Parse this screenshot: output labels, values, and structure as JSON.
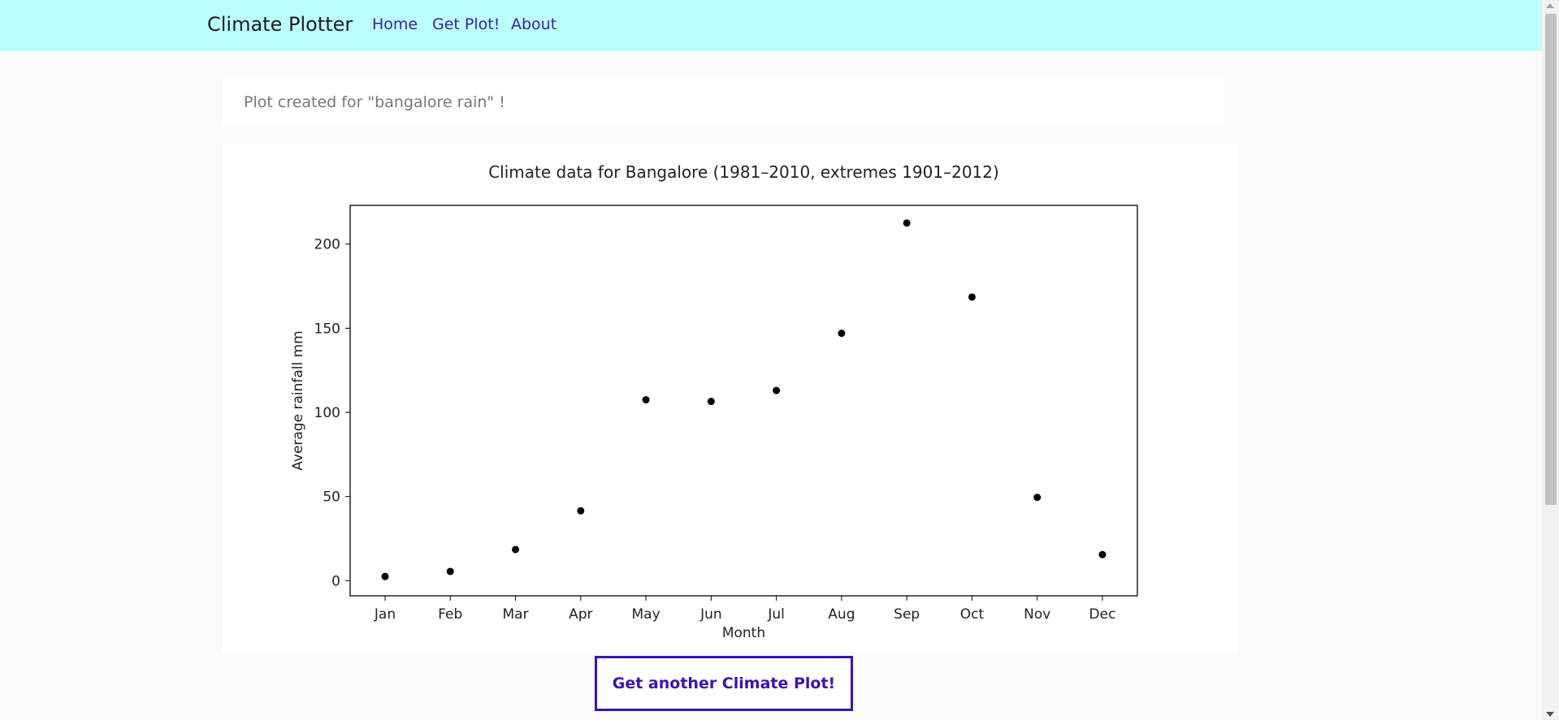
{
  "navbar": {
    "brand": "Climate Plotter",
    "links": [
      "Home",
      "Get Plot!",
      "About"
    ]
  },
  "message": "Plot created for \"bangalore rain\" !",
  "chart_data": {
    "type": "scatter",
    "title": "Climate data for Bangalore (1981–2010, extremes 1901–2012)",
    "xlabel": "Month",
    "ylabel": "Average rainfall mm",
    "categories": [
      "Jan",
      "Feb",
      "Mar",
      "Apr",
      "May",
      "Jun",
      "Jul",
      "Aug",
      "Sep",
      "Oct",
      "Nov",
      "Dec"
    ],
    "values": [
      2.5,
      5.5,
      18.5,
      41.5,
      107.5,
      106.5,
      113,
      147,
      212.5,
      168.5,
      49.5,
      15.5
    ],
    "yticks": [
      0,
      50,
      100,
      150,
      200
    ],
    "ylim": [
      -9,
      223
    ],
    "grid": false,
    "legend": false,
    "marker_color": "#000000"
  },
  "buttons": {
    "get_another": "Get another Climate Plot!"
  }
}
